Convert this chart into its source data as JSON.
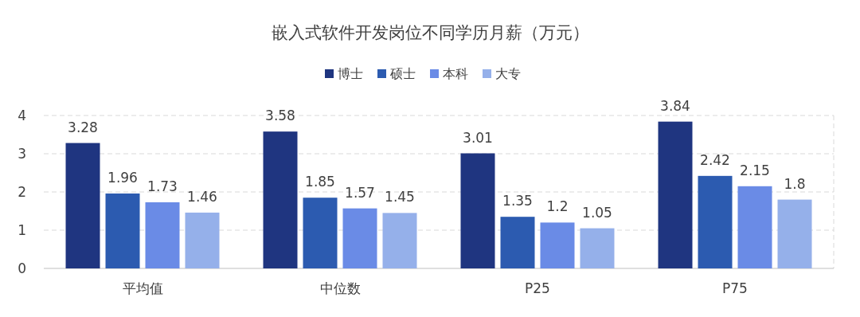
{
  "chart_data": {
    "type": "bar",
    "title": "嵌入式软件开发岗位不同学历月薪（万元）",
    "categories": [
      "平均值",
      "中位数",
      "P25",
      "P75"
    ],
    "series": [
      {
        "name": "博士",
        "color": "#1f3580",
        "values": [
          3.28,
          3.58,
          3.01,
          3.84
        ]
      },
      {
        "name": "硕士",
        "color": "#2c5bb0",
        "values": [
          1.96,
          1.85,
          1.35,
          2.42
        ]
      },
      {
        "name": "本科",
        "color": "#6a8be6",
        "values": [
          1.73,
          1.57,
          1.2,
          2.15
        ]
      },
      {
        "name": "大专",
        "color": "#95b0ea",
        "values": [
          1.46,
          1.45,
          1.05,
          1.8
        ]
      }
    ],
    "ylim": [
      0,
      4
    ],
    "yticks": [
      0,
      1,
      2,
      3,
      4
    ],
    "grid": "y",
    "legend": "top",
    "data_labels": true
  }
}
